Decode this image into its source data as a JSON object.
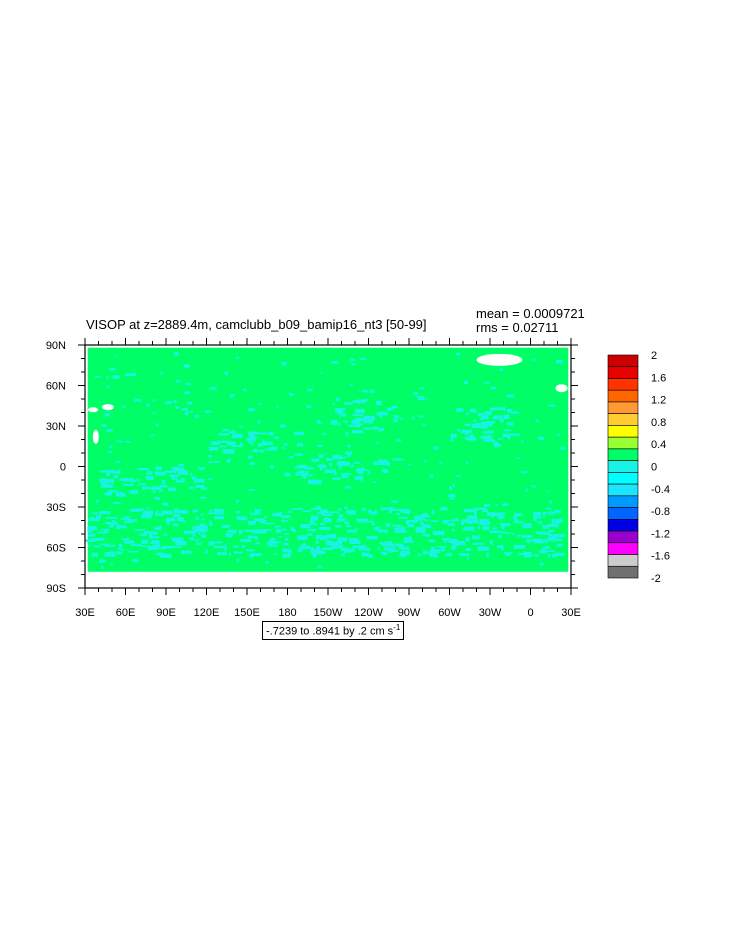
{
  "title": "VISOP at z=2889.4m, camclubb_b09_bamip16_nt3 [50-99]",
  "stats": {
    "mean": "mean = 0.0009721",
    "rms": "rms = 0.02711"
  },
  "range_text": "-.7239 to .8941 by .2 cm s",
  "range_unit_exp": "-1",
  "colors": {
    "ocean_fill": "#00ff66",
    "ocean_patch": "#1bf2e6",
    "missing": "#ffffff",
    "frame": "#000000"
  },
  "chart_data": {
    "type": "heatmap",
    "title": "VISOP at z=2889.4m, camclubb_b09_bamip16_nt3 [50-99]",
    "projection": "cylindrical equidistant",
    "x_ticks": [
      "30E",
      "60E",
      "90E",
      "120E",
      "150E",
      "180",
      "150W",
      "120W",
      "90W",
      "60W",
      "30W",
      "0",
      "30E"
    ],
    "x_tick_lons": [
      30,
      60,
      90,
      120,
      150,
      180,
      210,
      240,
      270,
      300,
      330,
      360,
      390
    ],
    "y_ticks": [
      "90N",
      "60N",
      "30N",
      "0",
      "30S",
      "60S",
      "90S"
    ],
    "y_tick_lats": [
      90,
      60,
      30,
      0,
      -30,
      -60,
      -90
    ],
    "xlim": [
      30,
      390
    ],
    "ylim": [
      -90,
      90
    ],
    "data_range": {
      "min": -0.7239,
      "max": 0.8941,
      "interval": 0.2,
      "units": "cm s-1"
    },
    "mean": 0.0009721,
    "rms": 0.02711,
    "colorbar": {
      "labels": [
        "2",
        "1.6",
        "1.2",
        "0.8",
        "0.4",
        "0",
        "-0.4",
        "-0.8",
        "-1.2",
        "-1.6",
        "-2"
      ],
      "colors": [
        "#cc0000",
        "#e60000",
        "#ff3300",
        "#ff6600",
        "#ff9933",
        "#ffcc33",
        "#ffff00",
        "#99ff33",
        "#00ff66",
        "#1bf2e6",
        "#00ffff",
        "#1ae6ff",
        "#0099ff",
        "#0066ff",
        "#0000e6",
        "#9900cc",
        "#ff00ff",
        "#cccccc",
        "#707070"
      ]
    },
    "field_regions": [
      {
        "value": "-0.2 to 0",
        "lon": [
          120,
          190
        ],
        "lat": [
          12,
          28
        ]
      },
      {
        "value": "-0.2 to 0",
        "lon": [
          210,
          250
        ],
        "lat": [
          25,
          50
        ]
      },
      {
        "value": "-0.2 to 0",
        "lon": [
          185,
          260
        ],
        "lat": [
          -10,
          10
        ]
      },
      {
        "value": "-0.2 to 0",
        "lon": [
          30,
          380
        ],
        "lat": [
          -65,
          -30
        ]
      },
      {
        "value": "-0.2 to 0",
        "lon": [
          300,
          345
        ],
        "lat": [
          20,
          45
        ]
      },
      {
        "value": "-0.2 to 0",
        "lon": [
          40,
          120
        ],
        "lat": [
          -20,
          0
        ]
      }
    ]
  }
}
